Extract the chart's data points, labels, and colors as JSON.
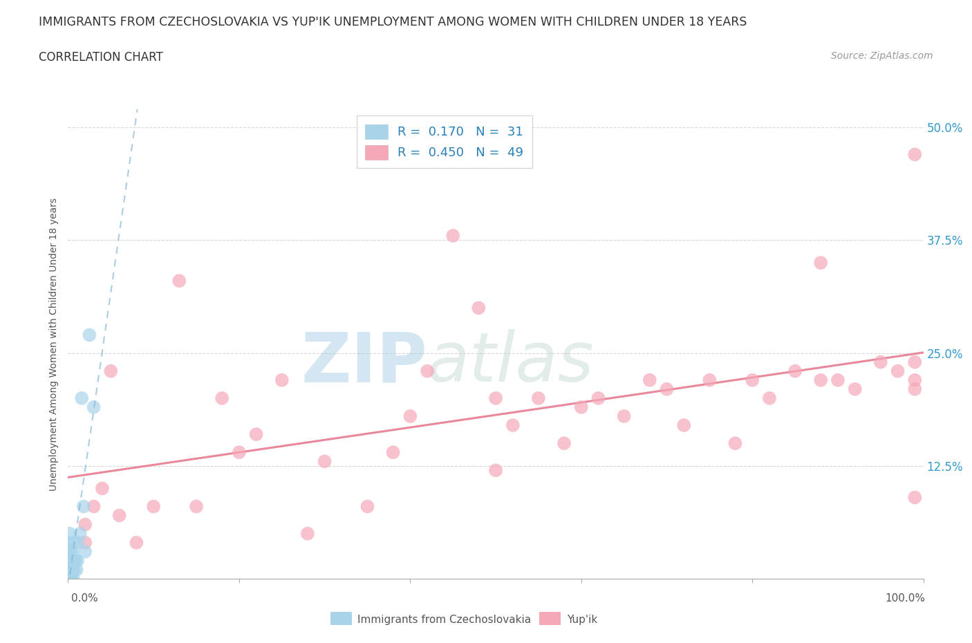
{
  "title": "IMMIGRANTS FROM CZECHOSLOVAKIA VS YUP'IK UNEMPLOYMENT AMONG WOMEN WITH CHILDREN UNDER 18 YEARS",
  "subtitle": "CORRELATION CHART",
  "source": "Source: ZipAtlas.com",
  "ylabel": "Unemployment Among Women with Children Under 18 years",
  "legend_label1": "Immigrants from Czechoslovakia",
  "legend_label2": "Yup'ik",
  "R1": 0.17,
  "N1": 31,
  "R2": 0.45,
  "N2": 49,
  "color1": "#a8d4ea",
  "color2": "#f4a8b8",
  "trend_color1": "#7fb3d3",
  "trend_color2": "#e87a90",
  "blue_points_x": [
    0.001,
    0.001,
    0.001,
    0.001,
    0.002,
    0.002,
    0.002,
    0.002,
    0.003,
    0.003,
    0.003,
    0.003,
    0.004,
    0.004,
    0.005,
    0.005,
    0.006,
    0.006,
    0.007,
    0.007,
    0.008,
    0.009,
    0.01,
    0.011,
    0.012,
    0.014,
    0.016,
    0.018,
    0.02,
    0.025,
    0.03
  ],
  "blue_points_y": [
    0.0,
    0.01,
    0.02,
    0.04,
    0.0,
    0.01,
    0.03,
    0.05,
    0.0,
    0.01,
    0.02,
    0.03,
    0.0,
    0.02,
    0.01,
    0.03,
    0.0,
    0.02,
    0.01,
    0.04,
    0.02,
    0.02,
    0.01,
    0.02,
    0.04,
    0.05,
    0.2,
    0.08,
    0.03,
    0.27,
    0.19
  ],
  "pink_points_x": [
    0.02,
    0.03,
    0.05,
    0.06,
    0.08,
    0.1,
    0.13,
    0.15,
    0.18,
    0.2,
    0.22,
    0.25,
    0.28,
    0.3,
    0.35,
    0.38,
    0.4,
    0.42,
    0.45,
    0.48,
    0.5,
    0.52,
    0.55,
    0.58,
    0.6,
    0.62,
    0.65,
    0.68,
    0.7,
    0.72,
    0.75,
    0.78,
    0.8,
    0.82,
    0.85,
    0.88,
    0.9,
    0.92,
    0.95,
    0.97,
    0.99,
    0.99,
    0.99,
    0.99,
    0.99,
    0.02,
    0.04,
    0.5,
    0.88
  ],
  "pink_points_y": [
    0.04,
    0.08,
    0.23,
    0.07,
    0.04,
    0.08,
    0.33,
    0.08,
    0.2,
    0.14,
    0.16,
    0.22,
    0.05,
    0.13,
    0.08,
    0.14,
    0.18,
    0.23,
    0.38,
    0.3,
    0.2,
    0.17,
    0.2,
    0.15,
    0.19,
    0.2,
    0.18,
    0.22,
    0.21,
    0.17,
    0.22,
    0.15,
    0.22,
    0.2,
    0.23,
    0.22,
    0.22,
    0.21,
    0.24,
    0.23,
    0.24,
    0.22,
    0.21,
    0.09,
    0.47,
    0.06,
    0.1,
    0.12,
    0.35
  ],
  "watermark_zip": "ZIP",
  "watermark_atlas": "atlas",
  "background_color": "#ffffff",
  "xlim": [
    0.0,
    1.0
  ],
  "ylim": [
    0.0,
    0.52
  ],
  "yticks": [
    0.0,
    0.125,
    0.25,
    0.375,
    0.5
  ],
  "ytick_labels": [
    "",
    "12.5%",
    "25.0%",
    "37.5%",
    "50.0%"
  ]
}
